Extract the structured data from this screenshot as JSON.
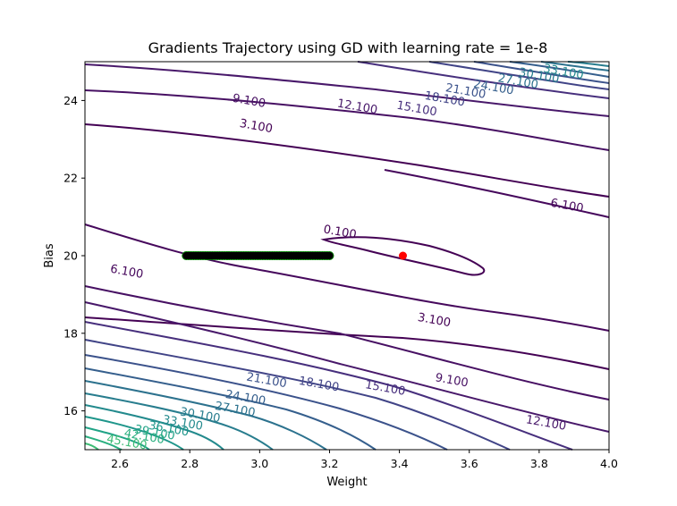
{
  "chart_data": {
    "type": "contour",
    "title": "Gradients Trajectory using GD with learning rate = 1e-8",
    "xlabel": "Weight",
    "ylabel": "Bias",
    "xlim": [
      2.5,
      4.0
    ],
    "ylim": [
      15.0,
      25.0
    ],
    "xticks": [
      "2.6",
      "2.8",
      "3.0",
      "3.2",
      "3.4",
      "3.6",
      "3.8",
      "4.0"
    ],
    "yticks": [
      "16",
      "18",
      "20",
      "22",
      "24"
    ],
    "grid": false,
    "colormap": "viridis",
    "contour_levels": [
      0.1,
      3.1,
      6.1,
      9.1,
      12.1,
      15.1,
      18.1,
      21.1,
      24.1,
      27.1,
      30.1,
      33.1,
      36.1,
      39.1,
      42.1,
      45.1
    ],
    "contour_labels": [
      {
        "text": "0.100",
        "x": 3.23,
        "y": 20.62,
        "color": "#440154"
      },
      {
        "text": "3.100",
        "x": 2.99,
        "y": 23.35,
        "color": "#440154"
      },
      {
        "text": "3.100",
        "x": 3.5,
        "y": 18.35,
        "color": "#440154"
      },
      {
        "text": "6.100",
        "x": 2.62,
        "y": 19.6,
        "color": "#46085c"
      },
      {
        "text": "6.100",
        "x": 3.88,
        "y": 21.3,
        "color": "#46085c"
      },
      {
        "text": "9.100",
        "x": 2.97,
        "y": 24.0,
        "color": "#471063"
      },
      {
        "text": "9.100",
        "x": 3.55,
        "y": 16.8,
        "color": "#471063"
      },
      {
        "text": "12.100",
        "x": 3.28,
        "y": 23.85,
        "color": "#48186a"
      },
      {
        "text": "12.100",
        "x": 3.82,
        "y": 15.7,
        "color": "#48186a"
      },
      {
        "text": "15.100",
        "x": 3.45,
        "y": 23.8,
        "color": "#472f7d"
      },
      {
        "text": "15.100",
        "x": 3.36,
        "y": 16.6,
        "color": "#472f7d"
      },
      {
        "text": "18.100",
        "x": 3.53,
        "y": 24.05,
        "color": "#414487"
      },
      {
        "text": "18.100",
        "x": 3.17,
        "y": 16.7,
        "color": "#414487"
      },
      {
        "text": "21.100",
        "x": 3.59,
        "y": 24.25,
        "color": "#3b528b"
      },
      {
        "text": "21.100",
        "x": 3.02,
        "y": 16.8,
        "color": "#3b528b"
      },
      {
        "text": "24.100",
        "x": 3.67,
        "y": 24.35,
        "color": "#355f8d"
      },
      {
        "text": "24.100",
        "x": 2.96,
        "y": 16.35,
        "color": "#355f8d"
      },
      {
        "text": "27.100",
        "x": 3.74,
        "y": 24.5,
        "color": "#2c728e"
      },
      {
        "text": "27.100",
        "x": 2.93,
        "y": 16.05,
        "color": "#2c728e"
      },
      {
        "text": "30.100",
        "x": 3.8,
        "y": 24.65,
        "color": "#287d8e"
      },
      {
        "text": "30.100",
        "x": 2.83,
        "y": 15.9,
        "color": "#287d8e"
      },
      {
        "text": "33.100",
        "x": 3.87,
        "y": 24.75,
        "color": "#238a8d"
      },
      {
        "text": "33.100",
        "x": 2.78,
        "y": 15.7,
        "color": "#238a8d"
      },
      {
        "text": "36.100",
        "x": 2.74,
        "y": 15.55,
        "color": "#1f968b"
      },
      {
        "text": "39.100",
        "x": 2.7,
        "y": 15.45,
        "color": "#20a386"
      },
      {
        "text": "42.100",
        "x": 2.67,
        "y": 15.35,
        "color": "#29af7f"
      },
      {
        "text": "45.100",
        "x": 2.62,
        "y": 15.2,
        "color": "#3dbc74"
      }
    ],
    "optimum": {
      "x": 3.41,
      "y": 20.0,
      "color": "#ff0000"
    },
    "trajectory": {
      "start": {
        "x": 3.2,
        "y": 20.0
      },
      "end": {
        "x": 2.79,
        "y": 20.0
      },
      "marker_color": "#008000",
      "path_color": "#000000"
    }
  }
}
